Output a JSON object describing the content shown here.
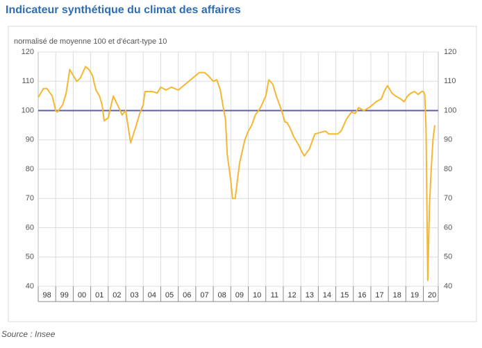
{
  "chart_data": {
    "type": "line",
    "title": "Indicateur synthétique du climat des affaires",
    "subtitle": "normalisé de moyenne 100 et d'écart-type 10",
    "source": "Source : Insee",
    "xlim": [
      1998,
      2020.85
    ],
    "xticks": [
      {
        "value": 1998.5,
        "label": "98"
      },
      {
        "value": 1999.5,
        "label": "99"
      },
      {
        "value": 2000.5,
        "label": "00"
      },
      {
        "value": 2001.5,
        "label": "01"
      },
      {
        "value": 2002.5,
        "label": "02"
      },
      {
        "value": 2003.5,
        "label": "03"
      },
      {
        "value": 2004.5,
        "label": "04"
      },
      {
        "value": 2005.5,
        "label": "05"
      },
      {
        "value": 2006.5,
        "label": "06"
      },
      {
        "value": 2007.5,
        "label": "07"
      },
      {
        "value": 2008.5,
        "label": "08"
      },
      {
        "value": 2009.5,
        "label": "09"
      },
      {
        "value": 2010.5,
        "label": "10"
      },
      {
        "value": 2011.5,
        "label": "11"
      },
      {
        "value": 2012.5,
        "label": "12"
      },
      {
        "value": 2013.5,
        "label": "13"
      },
      {
        "value": 2014.5,
        "label": "14"
      },
      {
        "value": 2015.5,
        "label": "15"
      },
      {
        "value": 2016.5,
        "label": "16"
      },
      {
        "value": 2017.5,
        "label": "17"
      },
      {
        "value": 2018.5,
        "label": "18"
      },
      {
        "value": 2019.5,
        "label": "19"
      },
      {
        "value": 2020.5,
        "label": "20"
      }
    ],
    "ylim": [
      40,
      120
    ],
    "yticks": [
      40,
      50,
      60,
      70,
      80,
      90,
      100,
      110,
      120
    ],
    "y2lim": [
      40,
      120
    ],
    "y2ticks": [
      40,
      50,
      60,
      70,
      80,
      90,
      100,
      110,
      120
    ],
    "grid": true,
    "hline": 100,
    "hline_color": "#5a5ca8",
    "series": [
      {
        "color": "#f5b731",
        "x": [
          1998.0,
          1998.3,
          1998.5,
          1998.8,
          1999.0,
          1999.1,
          1999.4,
          1999.6,
          1999.8,
          2000.0,
          2000.2,
          2000.4,
          2000.7,
          2000.9,
          2001.1,
          2001.3,
          2001.5,
          2001.65,
          2001.77,
          2002.0,
          2002.29,
          2002.6,
          2002.8,
          2003.0,
          2003.15,
          2003.28,
          2003.6,
          2003.8,
          2004.0,
          2004.1,
          2004.5,
          2004.8,
          2005.0,
          2005.3,
          2005.6,
          2006.0,
          2006.3,
          2006.6,
          2007.0,
          2007.2,
          2007.5,
          2007.7,
          2008.0,
          2008.2,
          2008.4,
          2008.6,
          2008.7,
          2008.8,
          2009.0,
          2009.1,
          2009.25,
          2009.5,
          2009.8,
          2010.0,
          2010.2,
          2010.4,
          2010.7,
          2011.0,
          2011.17,
          2011.4,
          2011.6,
          2011.9,
          2012.1,
          2012.2,
          2012.35,
          2012.6,
          2012.9,
          2013.05,
          2013.2,
          2013.5,
          2013.8,
          2014.1,
          2014.4,
          2014.6,
          2014.9,
          2015.1,
          2015.3,
          2015.6,
          2015.9,
          2016.1,
          2016.3,
          2016.6,
          2016.9,
          2017.1,
          2017.3,
          2017.6,
          2017.8,
          2017.96,
          2018.2,
          2018.4,
          2018.7,
          2018.9,
          2019.1,
          2019.3,
          2019.5,
          2019.7,
          2019.9,
          2020.0,
          2020.08,
          2020.15,
          2020.25,
          2020.35,
          2020.45,
          2020.55,
          2020.65
        ],
        "values": [
          104.5,
          107.5,
          107.5,
          105,
          100,
          99.5,
          102,
          106,
          114,
          112,
          110,
          111,
          115,
          114,
          112,
          107,
          105,
          102,
          96.5,
          97.5,
          105,
          101,
          98.5,
          100,
          94,
          89,
          95,
          99,
          102,
          106.5,
          106.5,
          106,
          108,
          107,
          108,
          107,
          108.5,
          110,
          112,
          113,
          113,
          112,
          110,
          110.5,
          107,
          100,
          97,
          85,
          76,
          70,
          70,
          82,
          90,
          93,
          95,
          98.5,
          101,
          105,
          110.5,
          109,
          105,
          100,
          96,
          96,
          94.5,
          91,
          88,
          86,
          84.5,
          87,
          92,
          92.5,
          93,
          92,
          92,
          92,
          93,
          97,
          99.5,
          99,
          101,
          100,
          101,
          102,
          103,
          104,
          107,
          108.5,
          106,
          105,
          104,
          103,
          105,
          106,
          106.5,
          105.5,
          106.5,
          106.5,
          105.5,
          94,
          42,
          68,
          80,
          90,
          95
        ]
      }
    ]
  }
}
